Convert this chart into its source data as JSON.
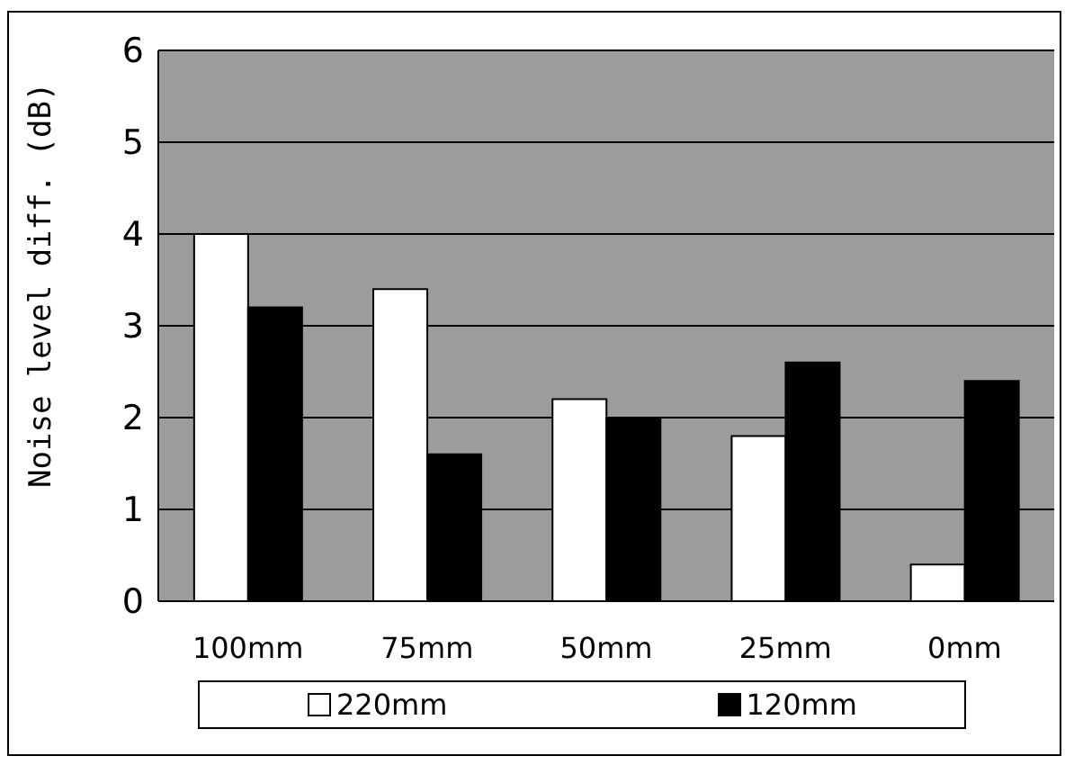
{
  "chart_data": {
    "type": "bar",
    "ylabel": "Noise level diff. (dB)",
    "categories": [
      "100mm",
      "75mm",
      "50mm",
      "25mm",
      "0mm"
    ],
    "series": [
      {
        "name": "220mm",
        "color": "#ffffff",
        "values": [
          4.0,
          3.4,
          2.2,
          1.8,
          0.4
        ]
      },
      {
        "name": "120mm",
        "color": "#000000",
        "values": [
          3.2,
          1.6,
          2.0,
          2.6,
          2.4
        ]
      }
    ],
    "ylim": [
      0,
      6
    ],
    "yticks": [
      0,
      1,
      2,
      3,
      4,
      5,
      6
    ],
    "grid": "y",
    "legend": "bottom"
  }
}
